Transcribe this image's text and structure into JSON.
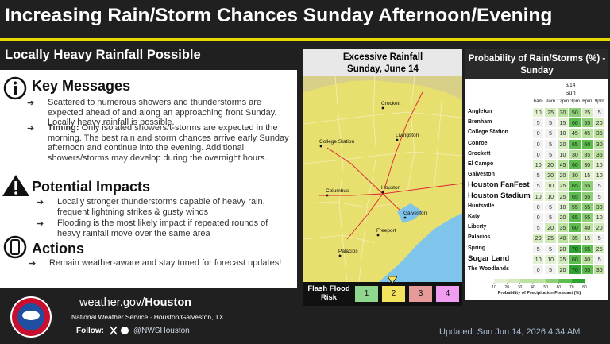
{
  "header": {
    "title": "Increasing Rain/Storm Chances Sunday Afternoon/Evening",
    "subtitle": "Locally Heavy Rainfall Possible"
  },
  "sections": [
    {
      "heading": "Key Messages",
      "items": [
        {
          "text": "Scattered to numerous showers and thunderstorms are expected ahead of and along an approaching front Sunday. Locally heavy rainfall is possible."
        },
        {
          "lead": "Timing:",
          "text": " Only isolated showers/t-storms are expected in the morning. The best rain and storm chances arrive early Sunday afternoon and continue into the evening. Additional showers/storms may develop during the overnight hours."
        }
      ]
    },
    {
      "heading": "Potential Impacts",
      "items": [
        {
          "text": "Locally stronger thunderstorms capable of heavy rain, frequent lightning strikes & gusty winds"
        },
        {
          "text": "Flooding is the most likely impact if repeated rounds of heavy rainfall move over the same area"
        }
      ]
    },
    {
      "heading": "Actions",
      "items": [
        {
          "text": "Remain weather-aware and stay tuned for forecast updates!"
        }
      ]
    }
  ],
  "map": {
    "title": "Excessive Rainfall",
    "subtitle": "Sunday, June 14",
    "cities": [
      "Crockett",
      "College Station",
      "Livingston",
      "Columbus",
      "Houston",
      "Galveston",
      "Freeport",
      "Palacios"
    ],
    "legend_title": "Flash Flood Risk",
    "levels": [
      {
        "label": "1",
        "color": "#8fd68f"
      },
      {
        "label": "2",
        "color": "#f2e25c"
      },
      {
        "label": "3",
        "color": "#e79a9a"
      },
      {
        "label": "4",
        "color": "#f09cf0"
      }
    ]
  },
  "table": {
    "title": "Probability of Rain/Storms (%) - Sunday",
    "date": "6/14",
    "day": "Sun",
    "times": [
      "6am",
      "9am",
      "12pm",
      "3pm",
      "6pm",
      "9pm"
    ],
    "rows": [
      {
        "name": "Angleton",
        "values": [
          10,
          25,
          30,
          50,
          25,
          5
        ]
      },
      {
        "name": "Brenham",
        "values": [
          5,
          5,
          15,
          60,
          55,
          20
        ]
      },
      {
        "name": "College Station",
        "values": [
          0,
          5,
          10,
          45,
          45,
          35
        ]
      },
      {
        "name": "Conroe",
        "values": [
          0,
          5,
          20,
          65,
          60,
          30
        ]
      },
      {
        "name": "Crockett",
        "values": [
          0,
          5,
          10,
          30,
          35,
          35
        ]
      },
      {
        "name": "El Campo",
        "values": [
          10,
          20,
          45,
          60,
          30,
          10
        ]
      },
      {
        "name": "Galveston",
        "values": [
          5,
          20,
          20,
          30,
          15,
          10
        ]
      },
      {
        "name": "Houston FanFest",
        "values": [
          5,
          10,
          25,
          65,
          55,
          5
        ]
      },
      {
        "name": "Houston Stadium",
        "values": [
          10,
          10,
          25,
          65,
          55,
          5
        ]
      },
      {
        "name": "Huntsville",
        "values": [
          0,
          5,
          10,
          55,
          55,
          30
        ]
      },
      {
        "name": "Katy",
        "values": [
          0,
          5,
          20,
          65,
          55,
          10
        ]
      },
      {
        "name": "Liberty",
        "values": [
          5,
          20,
          35,
          60,
          40,
          20
        ]
      },
      {
        "name": "Palacios",
        "values": [
          20,
          25,
          40,
          35,
          15,
          5
        ]
      },
      {
        "name": "Spring",
        "values": [
          5,
          5,
          20,
          70,
          65,
          25
        ]
      },
      {
        "name": "Sugar Land",
        "values": [
          10,
          10,
          25,
          60,
          40,
          5
        ]
      },
      {
        "name": "The Woodlands",
        "values": [
          0,
          5,
          20,
          70,
          65,
          30
        ]
      }
    ],
    "scale_ticks": [
      10,
      20,
      30,
      40,
      50,
      60,
      70,
      80
    ],
    "scale_label": "Probability of Precipitation Forecast (%)"
  },
  "footer": {
    "site_plain": "weather.gov/",
    "site_bold": "Houston",
    "office": "National Weather Service · Houston/Galveston, TX",
    "follow": "Follow:",
    "handle": "@NWSHouston",
    "updated": "Updated: Sun Jun 14, 2026 4:34 AM"
  }
}
